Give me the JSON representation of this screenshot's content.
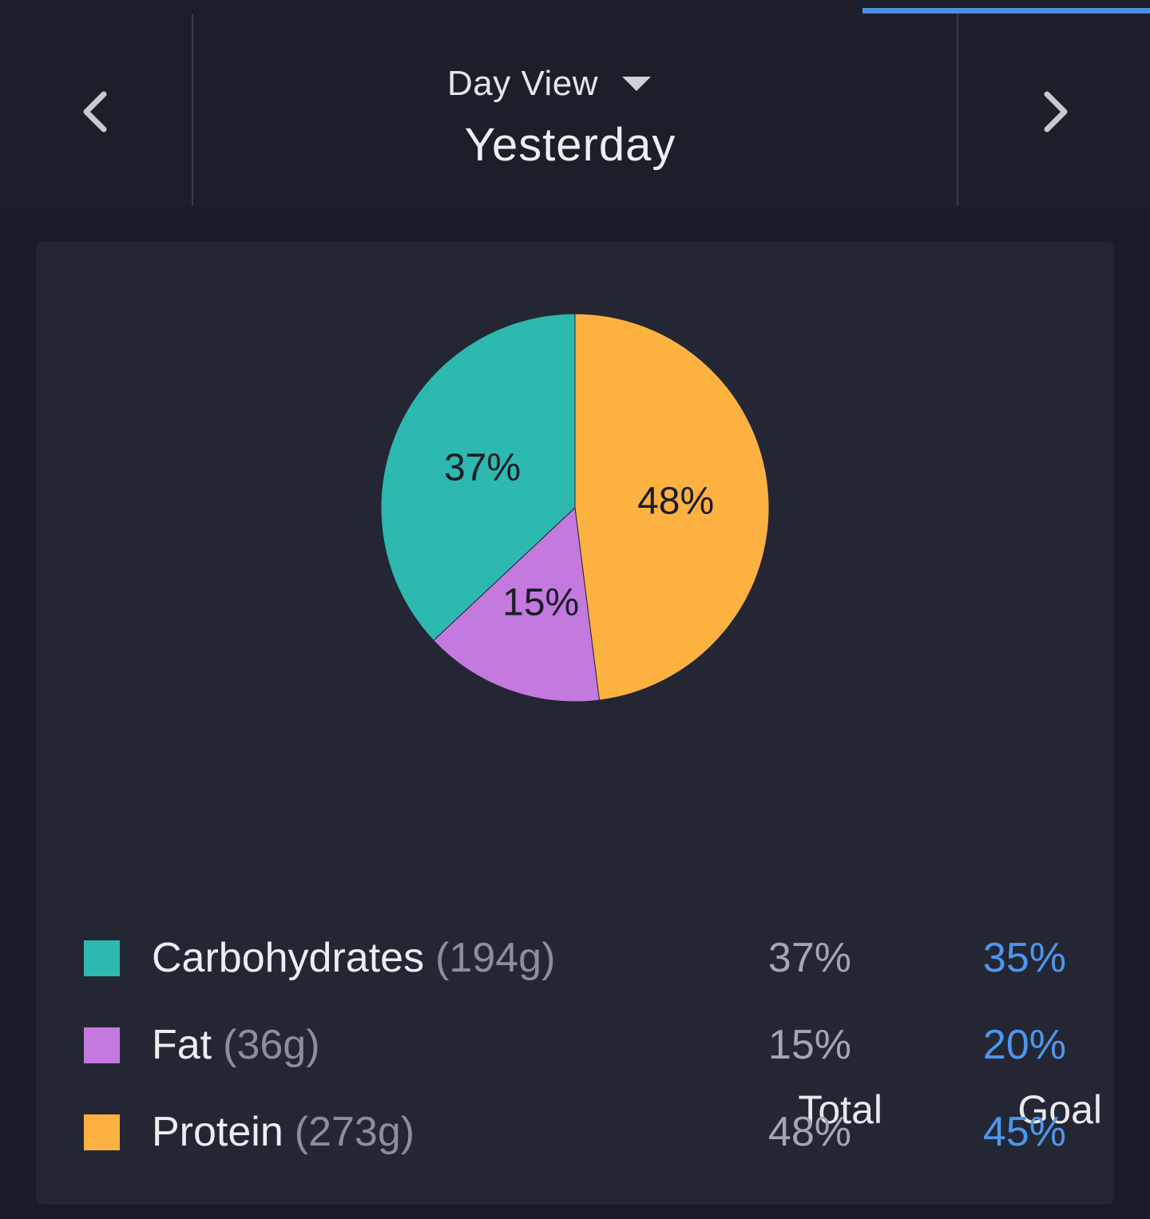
{
  "header": {
    "view_label": "Day View",
    "date_label": "Yesterday",
    "prev_icon": "chevron-left-icon",
    "next_icon": "chevron-right-icon",
    "dropdown_icon": "caret-down-icon"
  },
  "colors": {
    "carbohydrates": "#2db8b0",
    "fat": "#c479df",
    "protein": "#fdb141",
    "goal": "#4e96ee",
    "accent": "#4a8fe7"
  },
  "chart_data": {
    "type": "pie",
    "slices": [
      {
        "label": "Protein",
        "value": 48,
        "display": "48%",
        "color": "#fdb141"
      },
      {
        "label": "Fat",
        "value": 15,
        "display": "15%",
        "color": "#c479df"
      },
      {
        "label": "Carbohydrates",
        "value": 37,
        "display": "37%",
        "color": "#2db8b0"
      }
    ]
  },
  "table": {
    "headers": {
      "total": "Total",
      "goal": "Goal"
    },
    "rows": [
      {
        "name": "Carbohydrates",
        "grams": "(194g)",
        "total": "37%",
        "goal": "35%",
        "color": "#2db8b0"
      },
      {
        "name": "Fat",
        "grams": "(36g)",
        "total": "15%",
        "goal": "20%",
        "color": "#c479df"
      },
      {
        "name": "Protein",
        "grams": "(273g)",
        "total": "48%",
        "goal": "45%",
        "color": "#fdb141"
      }
    ]
  }
}
